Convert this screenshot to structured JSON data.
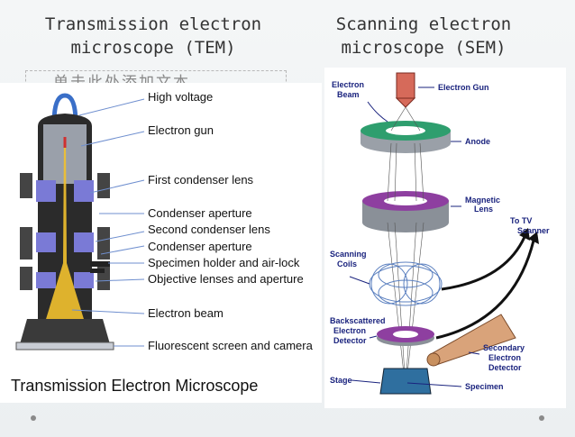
{
  "titles": {
    "tem": "Transmission electron\nmicroscope (TEM)",
    "sem": "Scanning electron\nmicroscope (SEM)"
  },
  "placeholder_text": "单击此处添加文本",
  "tem": {
    "caption": "Transmission Electron Microscope",
    "labels": [
      "High voltage",
      "Electron gun",
      "First condenser lens",
      "Condenser  aperture",
      "Second condenser lens",
      "Condenser aperture",
      "Specimen holder and air-lock",
      "Objective lenses and aperture",
      "Electron beam",
      "Fluorescent  screen  and camera"
    ]
  },
  "sem": {
    "electron_beam": [
      "Electron",
      "Beam"
    ],
    "electron_gun": "Electron Gun",
    "anode": "Anode",
    "magnetic_lens": [
      "Magnetic",
      "Lens"
    ],
    "to_tv_scanner": [
      "To TV",
      "Scanner"
    ],
    "scanning_coils": [
      "Scanning",
      "Coils"
    ],
    "backscattered_detector": [
      "Backscattered",
      "Electron",
      "Detector"
    ],
    "secondary_detector": [
      "Secondary",
      "Electron",
      "Detector"
    ],
    "stage": "Stage",
    "specimen": "Specimen"
  },
  "colors": {
    "sem_label": "#1a237e",
    "anode_ring": "#2e9e6e",
    "magnetic_ring": "#8e3fa0",
    "gun": "#d66a5a",
    "stage": "#2f6f9f",
    "tem_body": "#2b2b2b",
    "tem_lens": "#7a7ad6"
  }
}
